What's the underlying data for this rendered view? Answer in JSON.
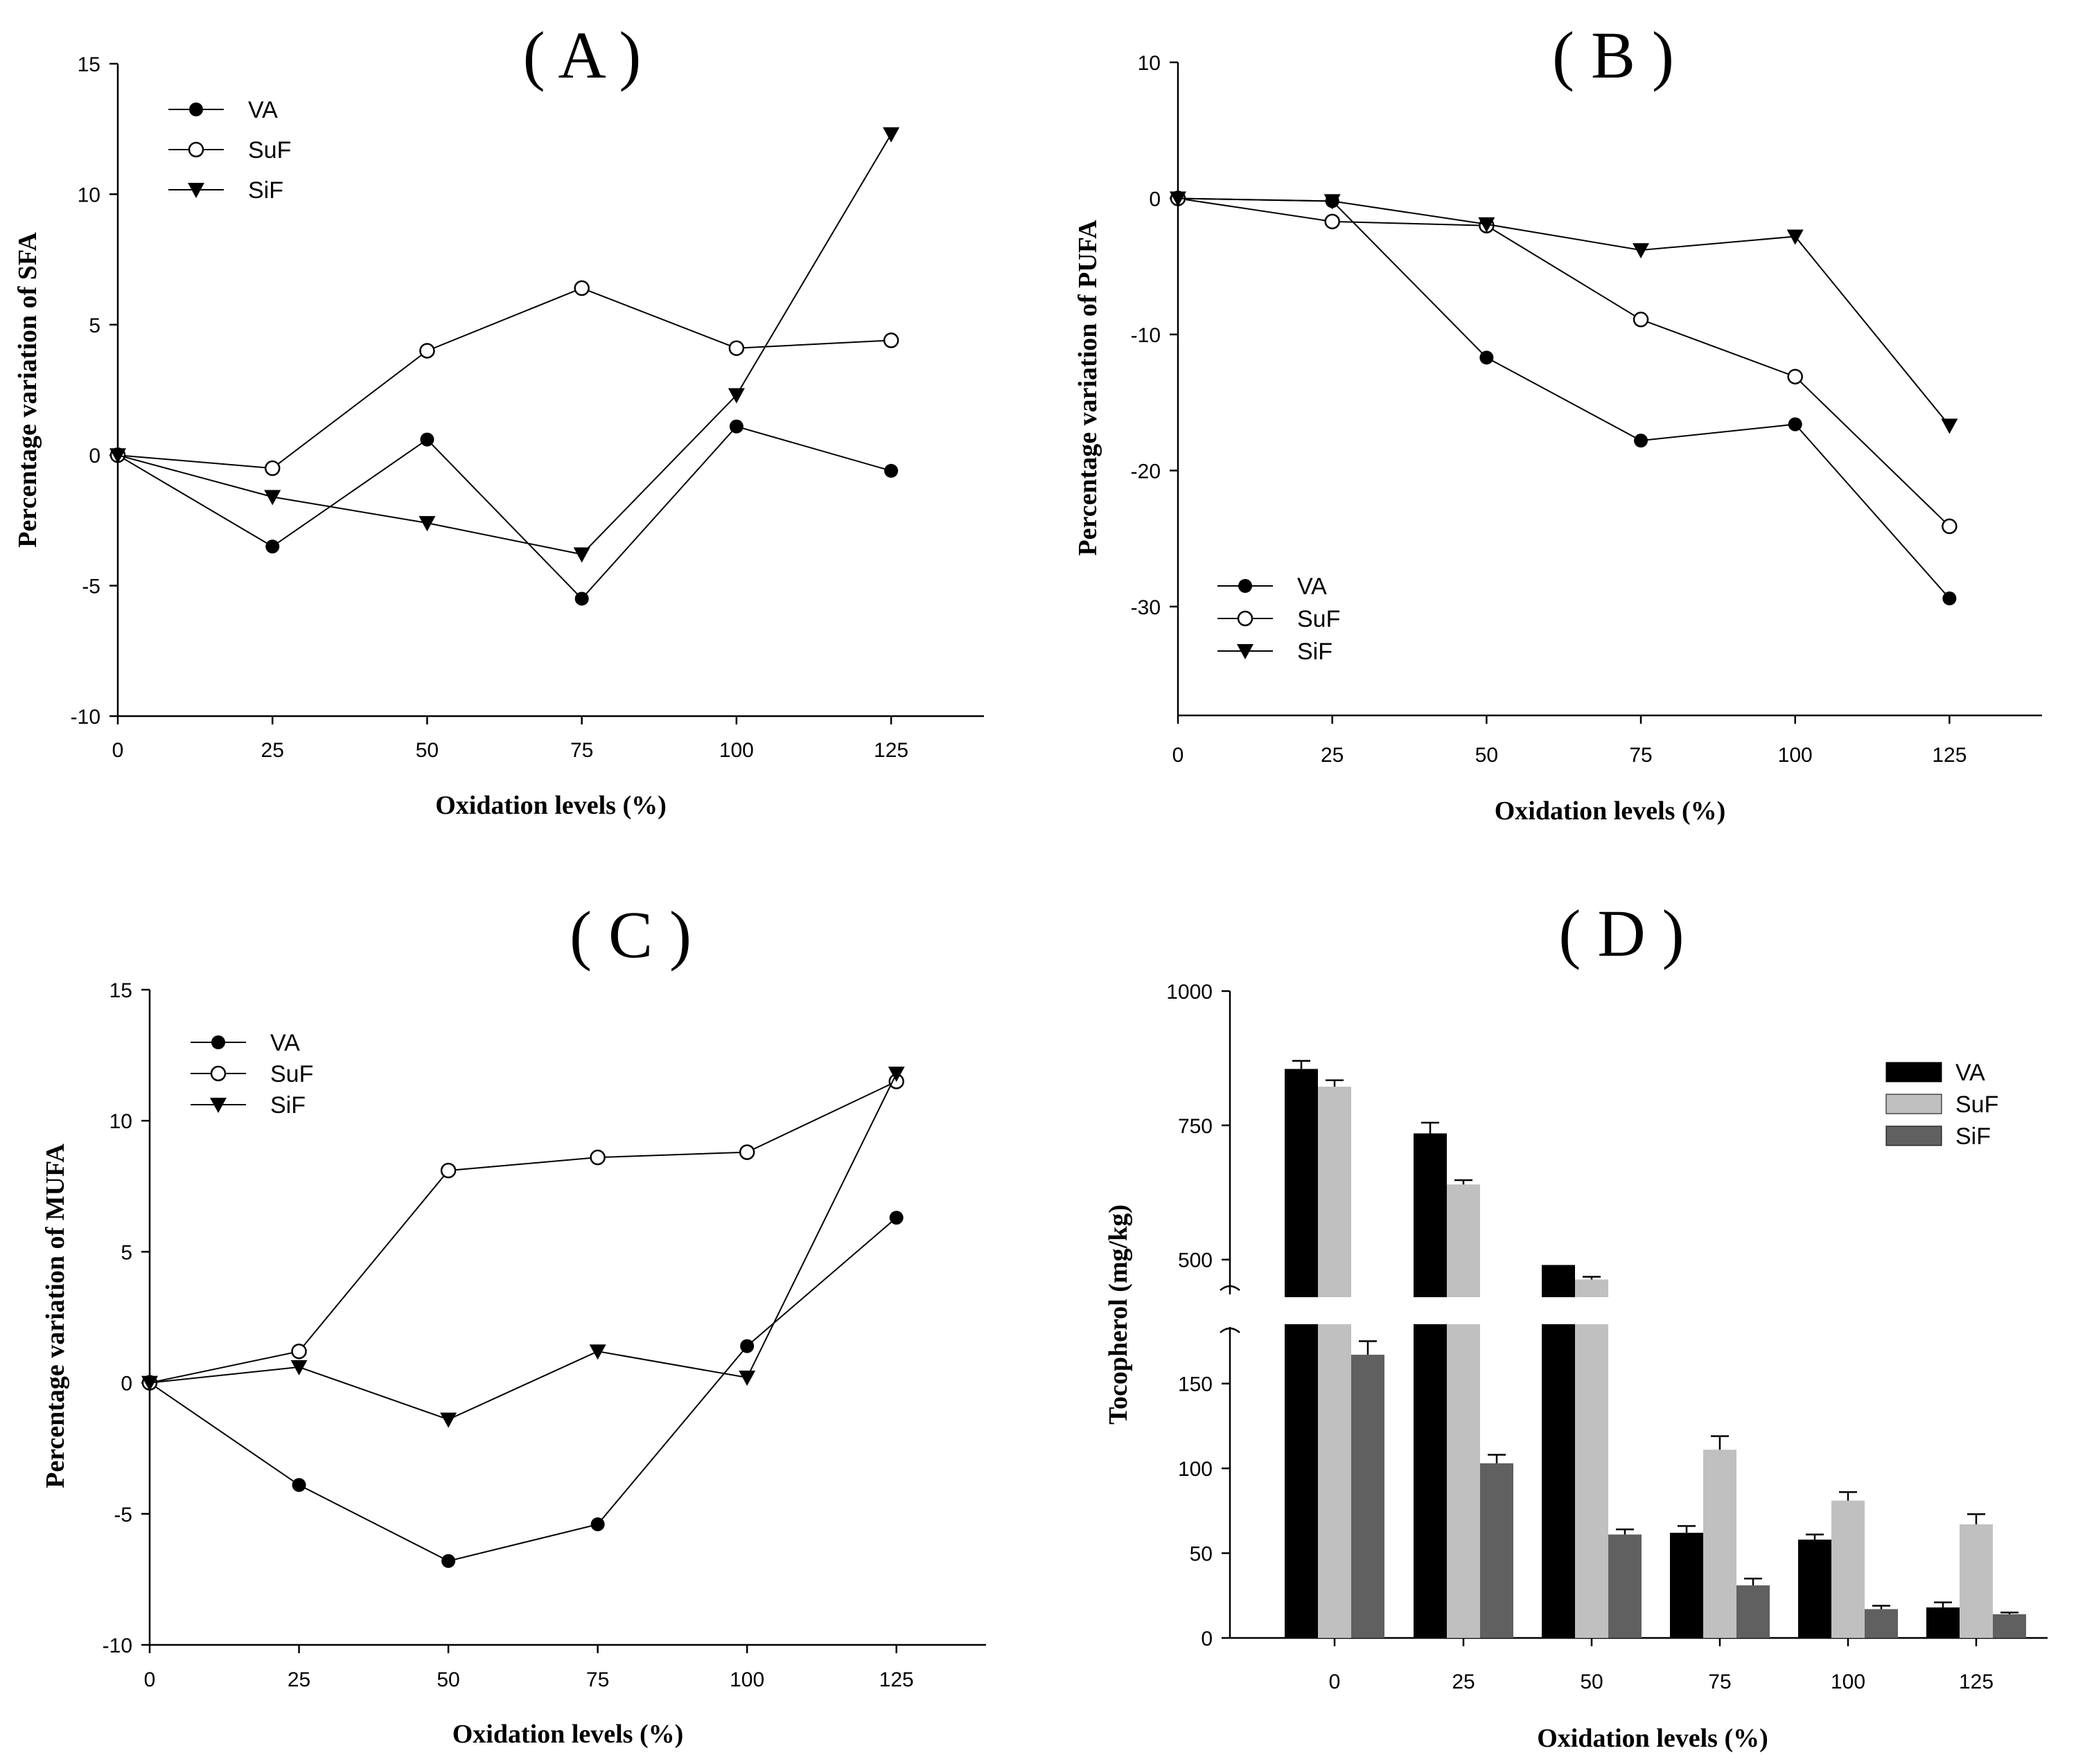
{
  "chart_data": [
    {
      "panel": "( A )",
      "type": "line",
      "x": [
        0,
        25,
        50,
        75,
        100,
        125
      ],
      "xlabel": "Oxidation levels (%)",
      "ylabel": "Percentage variation of SFA",
      "xlim": [
        0,
        140
      ],
      "ylim": [
        -10,
        15
      ],
      "xticks": [
        0,
        25,
        50,
        75,
        100,
        125
      ],
      "yticks": [
        -10,
        -5,
        0,
        5,
        10,
        15
      ],
      "legend_position": "top-left",
      "series": [
        {
          "name": "VA",
          "marker": "filled-circle",
          "values": [
            0,
            -3.5,
            0.6,
            -5.5,
            1.1,
            -0.6
          ]
        },
        {
          "name": "SuF",
          "marker": "open-circle",
          "values": [
            0,
            -0.5,
            4.0,
            6.4,
            4.1,
            4.4
          ]
        },
        {
          "name": "SiF",
          "marker": "filled-triangle-down",
          "values": [
            0,
            -1.6,
            -2.6,
            -3.8,
            2.3,
            12.3
          ]
        }
      ]
    },
    {
      "panel": "( B )",
      "type": "line",
      "x": [
        0,
        25,
        50,
        75,
        100,
        125
      ],
      "xlabel": "Oxidation levels (%)",
      "ylabel": "Percentage variation of PUFA",
      "xlim": [
        0,
        140
      ],
      "ylim": [
        -38,
        10
      ],
      "xticks": [
        0,
        25,
        50,
        75,
        100,
        125
      ],
      "yticks": [
        -30,
        -20,
        -10,
        0,
        10
      ],
      "legend_position": "bottom-left",
      "series": [
        {
          "name": "VA",
          "marker": "filled-circle",
          "values": [
            0,
            -0.2,
            -11.7,
            -17.8,
            -16.6,
            -29.4
          ]
        },
        {
          "name": "SuF",
          "marker": "open-circle",
          "values": [
            0,
            -1.7,
            -2.0,
            -8.9,
            -13.1,
            -24.1
          ]
        },
        {
          "name": "SiF",
          "marker": "filled-triangle-down",
          "values": [
            0,
            -0.2,
            -1.9,
            -3.8,
            -2.8,
            -16.7
          ]
        }
      ]
    },
    {
      "panel": "( C )",
      "type": "line",
      "x": [
        0,
        25,
        50,
        75,
        100,
        125
      ],
      "xlabel": "Oxidation levels (%)",
      "ylabel": "Percentage variation of MUFA",
      "xlim": [
        0,
        140
      ],
      "ylim": [
        -10,
        15
      ],
      "xticks": [
        0,
        25,
        50,
        75,
        100,
        125
      ],
      "yticks": [
        -10,
        -5,
        0,
        5,
        10,
        15
      ],
      "legend_position": "top-left",
      "series": [
        {
          "name": "VA",
          "marker": "filled-circle",
          "values": [
            0,
            -3.9,
            -6.8,
            -5.4,
            1.4,
            6.3
          ]
        },
        {
          "name": "SuF",
          "marker": "open-circle",
          "values": [
            0,
            1.2,
            8.1,
            8.6,
            8.8,
            11.5
          ]
        },
        {
          "name": "SiF",
          "marker": "filled-triangle-down",
          "values": [
            0,
            0.6,
            -1.4,
            1.2,
            0.2,
            11.8
          ]
        }
      ]
    },
    {
      "panel": "( D )",
      "type": "bar",
      "categories": [
        "0",
        "25",
        "50",
        "75",
        "100",
        "125"
      ],
      "xlabel": "Oxidation levels (%)",
      "ylabel": "Tocopherol (mg/kg)",
      "broken_axis": {
        "lower": [
          0,
          185
        ],
        "upper": [
          430,
          1000
        ]
      },
      "yticks": [
        0,
        50,
        100,
        150,
        500,
        750,
        1000
      ],
      "legend_position": "top-right",
      "series": [
        {
          "name": "VA",
          "color": "#000000",
          "values": [
            855,
            735,
            490,
            62,
            58,
            18
          ],
          "errors": [
            15,
            20,
            0,
            4,
            3,
            3
          ]
        },
        {
          "name": "SuF",
          "color": "#c0c0c0",
          "values": [
            822,
            640,
            463,
            111,
            81,
            67
          ],
          "errors": [
            12,
            8,
            5,
            8,
            5,
            6
          ]
        },
        {
          "name": "SiF",
          "color": "#606060",
          "values": [
            167,
            103,
            61,
            31,
            17,
            14
          ],
          "errors": [
            8,
            5,
            3,
            4,
            2,
            1
          ]
        }
      ]
    }
  ]
}
